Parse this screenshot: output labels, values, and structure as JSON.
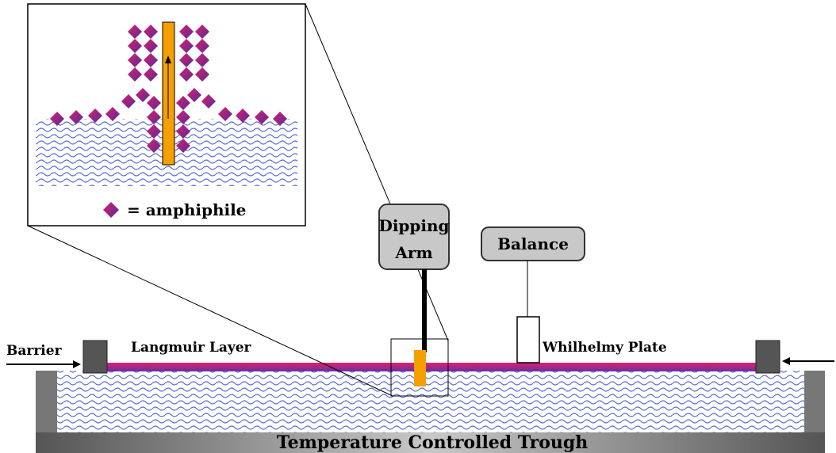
{
  "inset": {
    "legend": "= amphiphile"
  },
  "dipping_arm": {
    "line1": "Dipping",
    "line2": "Arm"
  },
  "balance": "Balance",
  "barrier": "Barrier",
  "langmuir_layer": "Langmuir Layer",
  "plate": "Whilhelmy Plate",
  "trough": "Temperature Controlled Trough"
}
